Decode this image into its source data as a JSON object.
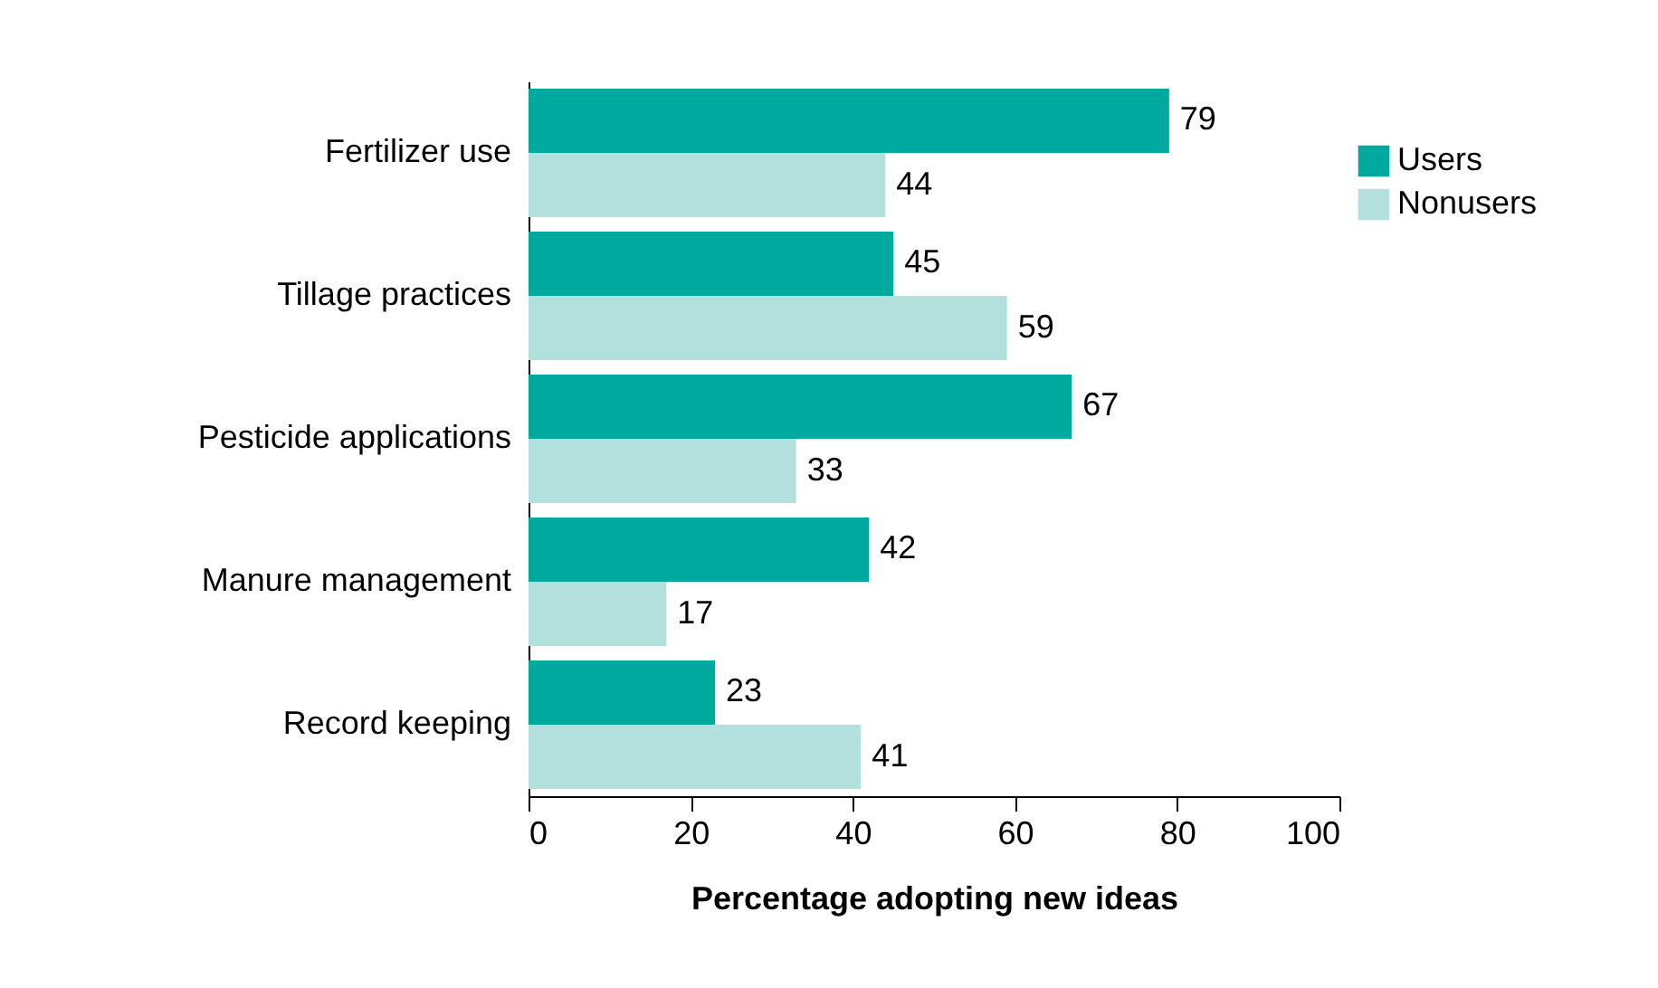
{
  "chart_data": {
    "type": "bar",
    "orientation": "horizontal",
    "xlabel": "Percentage adopting new ideas",
    "categories": [
      "Fertilizer use",
      "Tillage practices",
      "Pesticide applications",
      "Manure management",
      "Record keeping"
    ],
    "series": [
      {
        "name": "Users",
        "color": "#00a99d",
        "values": [
          79,
          45,
          67,
          42,
          23
        ]
      },
      {
        "name": "Nonusers",
        "color": "#b2e0dc",
        "values": [
          44,
          59,
          33,
          17,
          41
        ]
      }
    ],
    "xlim": [
      0,
      100
    ],
    "xticks": [
      0,
      20,
      40,
      60,
      80,
      100
    ],
    "data_labels": true,
    "legend": "top right",
    "grid": false
  }
}
